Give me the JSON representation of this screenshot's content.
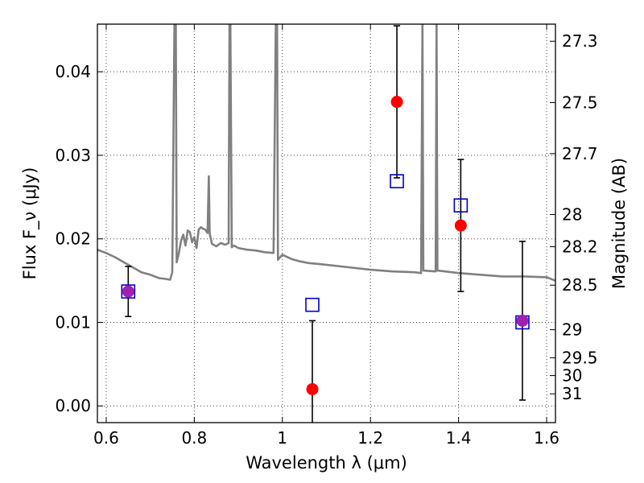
{
  "chart_data": {
    "type": "scatter",
    "title": "",
    "xlabel": "Wavelength λ (μm)",
    "ylabel": "Flux F_ν (μJy)",
    "y2label": "Magnitude (AB)",
    "xlim": [
      0.58,
      1.62
    ],
    "ylim": [
      -0.002,
      0.0457
    ],
    "grid": true,
    "x_ticks": [
      0.6,
      0.8,
      1.0,
      1.2,
      1.4,
      1.6
    ],
    "x_tick_labels": [
      "0.6",
      "0.8",
      "1",
      "1.2",
      "1.4",
      "1.6"
    ],
    "y_ticks": [
      0.0,
      0.01,
      0.02,
      0.03,
      0.04
    ],
    "y_tick_labels": [
      "0.00",
      "0.01",
      "0.02",
      "0.03",
      "0.04"
    ],
    "y2_ticks": [
      {
        "label": "27.3",
        "value": 27.3
      },
      {
        "label": "27.5",
        "value": 27.5
      },
      {
        "label": "27.7",
        "value": 27.7
      },
      {
        "label": "28",
        "value": 28.0
      },
      {
        "label": "28.2",
        "value": 28.2
      },
      {
        "label": "28.5",
        "value": 28.5
      },
      {
        "label": "29",
        "value": 29.0
      },
      {
        "label": "29.5",
        "value": 29.5
      },
      {
        "label": "30",
        "value": 30.0
      },
      {
        "label": "31",
        "value": 31.0
      }
    ],
    "series": [
      {
        "marker": "filled-circle",
        "color": "#ff0000",
        "x": [
          0.65,
          1.068,
          1.26,
          1.405,
          1.545
        ],
        "y": [
          0.0137,
          0.002,
          0.0364,
          0.0216,
          0.0102
        ],
        "yerr": [
          0.003,
          0.0082,
          0.0091,
          0.0079,
          0.0095
        ]
      },
      {
        "marker": "open-square",
        "color": "#0000cc",
        "x": [
          0.65,
          1.068,
          1.26,
          1.405,
          1.545
        ],
        "y": [
          0.0137,
          0.0121,
          0.0269,
          0.024,
          0.01
        ]
      },
      {
        "marker": "line",
        "color": "#808080",
        "x": [
          0.58,
          0.6,
          0.62,
          0.64,
          0.66,
          0.68,
          0.7,
          0.72,
          0.735,
          0.745,
          0.75,
          0.755,
          0.758,
          0.76,
          0.765,
          0.77,
          0.775,
          0.78,
          0.785,
          0.79,
          0.795,
          0.8,
          0.805,
          0.81,
          0.815,
          0.82,
          0.825,
          0.83,
          0.833,
          0.835,
          0.838,
          0.84,
          0.85,
          0.86,
          0.87,
          0.878,
          0.88,
          0.882,
          0.885,
          0.89,
          0.9,
          0.92,
          0.94,
          0.96,
          0.98,
          0.985,
          0.988,
          0.99,
          1.0,
          1.02,
          1.04,
          1.06,
          1.08,
          1.1,
          1.15,
          1.2,
          1.25,
          1.3,
          1.315,
          1.318,
          1.32,
          1.348,
          1.35,
          1.352,
          1.4,
          1.45,
          1.5,
          1.55,
          1.6,
          1.62
        ],
        "y": [
          0.0187,
          0.0183,
          0.0178,
          0.0172,
          0.0166,
          0.016,
          0.0157,
          0.0153,
          0.0152,
          0.0151,
          0.016,
          0.0457,
          0.0457,
          0.0172,
          0.0183,
          0.0198,
          0.0205,
          0.0192,
          0.021,
          0.0208,
          0.0196,
          0.0202,
          0.0189,
          0.0211,
          0.0214,
          0.0212,
          0.0211,
          0.0207,
          0.0275,
          0.0206,
          0.0199,
          0.0194,
          0.0191,
          0.0195,
          0.0193,
          0.0195,
          0.0457,
          0.0457,
          0.019,
          0.0192,
          0.0189,
          0.0187,
          0.0186,
          0.0184,
          0.0183,
          0.0457,
          0.0457,
          0.0175,
          0.0181,
          0.0176,
          0.0173,
          0.0171,
          0.017,
          0.0169,
          0.0166,
          0.0163,
          0.0161,
          0.016,
          0.0159,
          0.0457,
          0.0162,
          0.0161,
          0.0457,
          0.0162,
          0.0159,
          0.0157,
          0.0155,
          0.0155,
          0.0154,
          0.015
        ]
      }
    ]
  }
}
